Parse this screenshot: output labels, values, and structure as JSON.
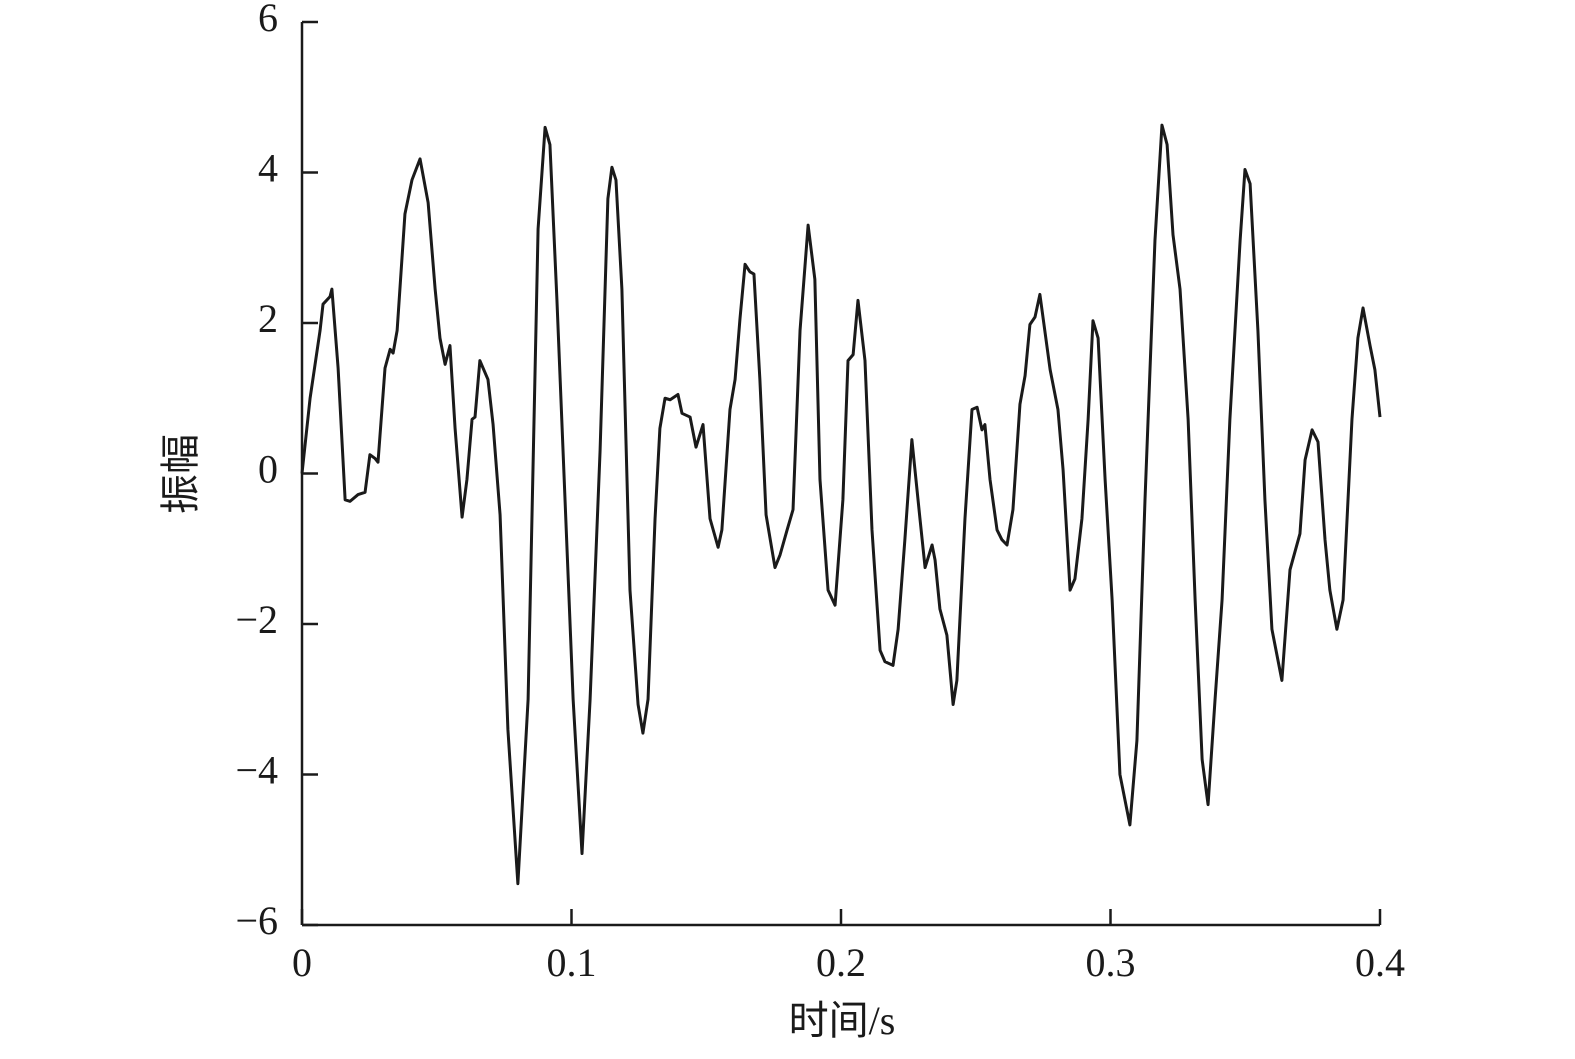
{
  "chart_data": {
    "type": "line",
    "xlabel": "时间/s",
    "ylabel": "振幅",
    "xlim": [
      0,
      0.4
    ],
    "xticks": [
      0,
      0.1,
      0.2,
      0.3,
      0.4
    ],
    "ylim": [
      -6,
      6
    ],
    "yticks": [
      {
        "value": -6,
        "label": "−6"
      },
      {
        "value": -4,
        "label": "−4"
      },
      {
        "value": -2,
        "label": "−2"
      },
      0,
      2,
      4,
      6
    ],
    "x": [
      0,
      0.003,
      0.0067,
      0.0078,
      0.0104,
      0.0111,
      0.0134,
      0.016,
      0.0178,
      0.0208,
      0.0234,
      0.0252,
      0.0271,
      0.0282,
      0.0308,
      0.0327,
      0.0338,
      0.0353,
      0.0382,
      0.0408,
      0.0438,
      0.0468,
      0.0494,
      0.0512,
      0.0531,
      0.0549,
      0.0568,
      0.0594,
      0.0612,
      0.0631,
      0.0642,
      0.066,
      0.069,
      0.0709,
      0.0735,
      0.0764,
      0.0801,
      0.0839,
      0.0876,
      0.0902,
      0.092,
      0.0946,
      0.0976,
      0.1006,
      0.1039,
      0.1069,
      0.1106,
      0.1135,
      0.115,
      0.1165,
      0.1187,
      0.1217,
      0.1247,
      0.1265,
      0.1284,
      0.131,
      0.1328,
      0.1347,
      0.1366,
      0.1395,
      0.141,
      0.144,
      0.1462,
      0.1488,
      0.1514,
      0.1544,
      0.1558,
      0.1588,
      0.1607,
      0.1625,
      0.1644,
      0.1662,
      0.1677,
      0.1699,
      0.1722,
      0.1755,
      0.1774,
      0.18,
      0.1822,
      0.1848,
      0.1878,
      0.1903,
      0.1922,
      0.1952,
      0.1978,
      0.2007,
      0.2026,
      0.2045,
      0.2063,
      0.2089,
      0.2115,
      0.2145,
      0.2163,
      0.2193,
      0.2212,
      0.2237,
      0.2263,
      0.2293,
      0.2312,
      0.2338,
      0.2349,
      0.2367,
      0.2393,
      0.2416,
      0.243,
      0.246,
      0.2486,
      0.2505,
      0.2523,
      0.2534,
      0.2553,
      0.2579,
      0.2597,
      0.2616,
      0.2638,
      0.2664,
      0.2683,
      0.2701,
      0.272,
      0.2738,
      0.2776,
      0.2805,
      0.2824,
      0.285,
      0.2868,
      0.2894,
      0.2917,
      0.2935,
      0.2954,
      0.298,
      0.3006,
      0.3035,
      0.3072,
      0.3098,
      0.3128,
      0.3165,
      0.3191,
      0.321,
      0.3232,
      0.3258,
      0.3288,
      0.3314,
      0.334,
      0.3362,
      0.3388,
      0.3414,
      0.3443,
      0.3481,
      0.3499,
      0.3518,
      0.3547,
      0.3573,
      0.3599,
      0.3636,
      0.3666,
      0.3703,
      0.3722,
      0.3748,
      0.377,
      0.3796,
      0.3814,
      0.384,
      0.3863,
      0.3896,
      0.3918,
      0.3937,
      0.3963,
      0.3981,
      0.4
    ],
    "series": [
      {
        "color": "#1a1a1a",
        "values": [
          0,
          1.0,
          1.9,
          2.25,
          2.35,
          2.45,
          1.4,
          -0.35,
          -0.37,
          -0.28,
          -0.25,
          0.25,
          0.2,
          0.15,
          1.4,
          1.65,
          1.6,
          1.9,
          3.45,
          3.9,
          4.18,
          3.6,
          2.45,
          1.8,
          1.45,
          1.7,
          0.6,
          -0.58,
          -0.08,
          0.72,
          0.75,
          1.5,
          1.25,
          0.65,
          -0.55,
          -3.4,
          -5.45,
          -3.0,
          3.25,
          4.6,
          4.37,
          2.3,
          -0.35,
          -3.0,
          -5.05,
          -3.0,
          0.3,
          3.65,
          4.07,
          3.9,
          2.45,
          -1.55,
          -3.07,
          -3.45,
          -3.0,
          -0.6,
          0.6,
          1.0,
          0.98,
          1.05,
          0.8,
          0.75,
          0.35,
          0.65,
          -0.6,
          -0.98,
          -0.75,
          0.85,
          1.25,
          2.05,
          2.78,
          2.68,
          2.65,
          1.25,
          -0.55,
          -1.25,
          -1.08,
          -0.75,
          -0.48,
          1.9,
          3.3,
          2.58,
          -0.08,
          -1.55,
          -1.75,
          -0.35,
          1.5,
          1.58,
          2.3,
          1.5,
          -0.75,
          -2.35,
          -2.5,
          -2.55,
          -2.07,
          -0.88,
          0.45,
          -0.6,
          -1.25,
          -0.95,
          -1.15,
          -1.8,
          -2.15,
          -3.07,
          -2.75,
          -0.6,
          0.85,
          0.88,
          0.58,
          0.65,
          -0.08,
          -0.75,
          -0.88,
          -0.95,
          -0.48,
          0.92,
          1.3,
          1.98,
          2.08,
          2.38,
          1.38,
          0.85,
          0.05,
          -1.55,
          -1.4,
          -0.6,
          0.72,
          2.03,
          1.8,
          -0.08,
          -1.68,
          -4.0,
          -4.67,
          -3.55,
          -0.35,
          3.1,
          4.63,
          4.37,
          3.17,
          2.45,
          0.72,
          -1.68,
          -3.8,
          -4.4,
          -3.0,
          -1.68,
          0.72,
          3.1,
          4.04,
          3.85,
          1.9,
          -0.35,
          -2.07,
          -2.75,
          -1.28,
          -0.8,
          0.18,
          0.58,
          0.42,
          -0.88,
          -1.55,
          -2.07,
          -1.68,
          0.72,
          1.8,
          2.2,
          1.7,
          1.38,
          0.75
        ]
      }
    ]
  }
}
